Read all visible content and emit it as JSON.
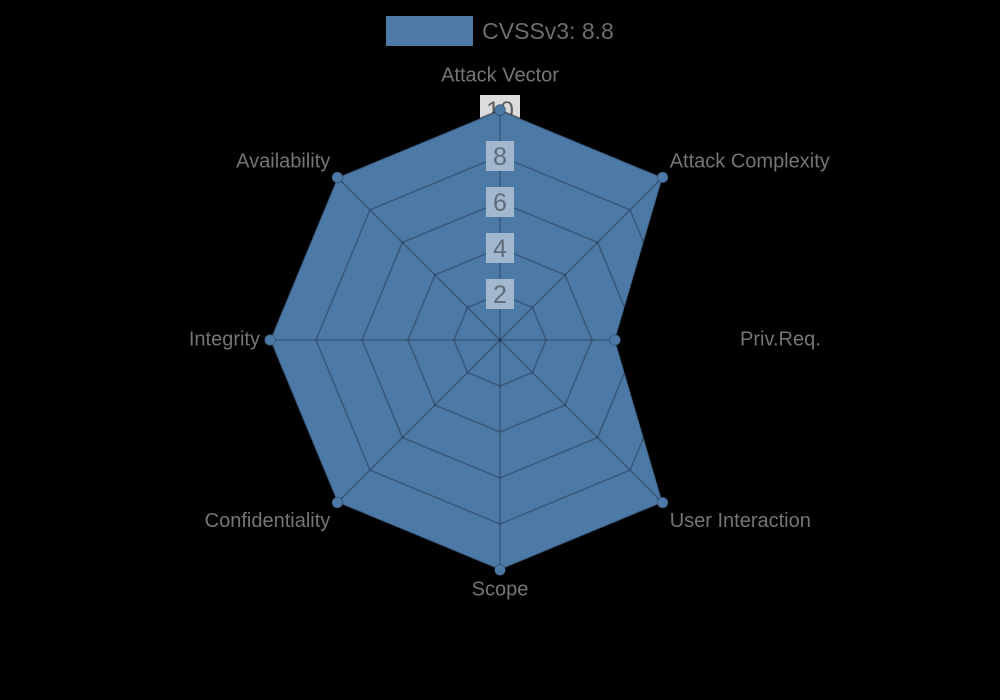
{
  "page": {
    "background": "#000000"
  },
  "legend": {
    "label": "CVSSv3: 8.8",
    "swatch_color": "#4d79a7"
  },
  "chart_data": {
    "type": "radar",
    "title": "CVSSv3: 8.8",
    "categories": [
      "Attack Vector",
      "Attack Complexity",
      "Priv.Req.",
      "User Interaction",
      "Scope",
      "Confidentiality",
      "Integrity",
      "Availability"
    ],
    "series": [
      {
        "name": "CVSSv3: 8.8",
        "values": [
          10,
          10,
          5,
          10,
          10,
          10,
          10,
          10
        ],
        "color": "#4d79a7"
      }
    ],
    "rlim": [
      0,
      10
    ],
    "ticks": [
      2,
      4,
      6,
      8,
      10
    ],
    "grid": true,
    "legend_position": "top",
    "colors": {
      "background": "#000000",
      "series_fill": "#4d79a7",
      "series_edge": "rgba(0,0,0,0.18)",
      "grid_line": "rgba(0,0,0,0.25)",
      "tick_backdrop": "#a2b8cf",
      "tick_backdrop_outer": "#dcdcdc",
      "tick_text": "#5f6b78",
      "tick_text_outer": "#616161",
      "axis_label": "#757575"
    }
  }
}
